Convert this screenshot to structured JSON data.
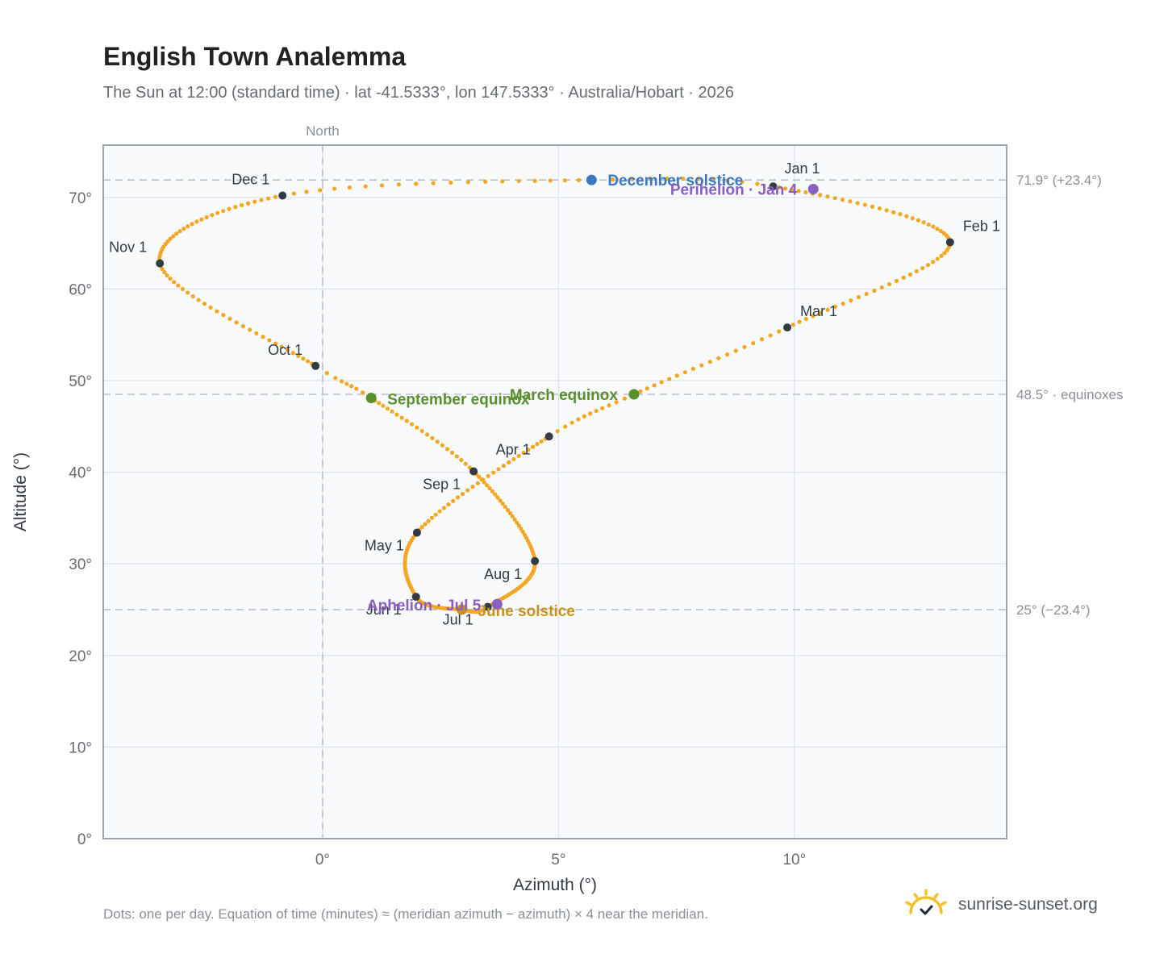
{
  "title": "English Town Analemma",
  "subtitle": "The Sun at 12:00 (standard time) · lat -41.5333°, lon 147.5333° · Australia/Hobart · 2026",
  "footnote": "Dots: one per day. Equation of time (minutes) ≈ (meridian azimuth − azimuth) × 4 near the meridian.",
  "brand": {
    "text": "sunrise-sunset.org",
    "icon": "sun-check-icon"
  },
  "colors": {
    "curve": "#f5a623",
    "month_marker": "#333a44",
    "december": "#3a78c0",
    "equinox": "#5a8f2e",
    "june": "#c8921a",
    "apsis": "#8a5fbf",
    "grid": "#e3e8ef",
    "plot_bg": "#f8fafc",
    "frame": "#9aa5b4",
    "reference": "#b8c0cc"
  },
  "chart_data": {
    "type": "scatter",
    "title": "English Town Analemma",
    "xlabel": "Azimuth (°)",
    "ylabel": "Altitude (°)",
    "xlim": [
      -4.65,
      14.5
    ],
    "ylim": [
      0,
      75.7
    ],
    "x_ticks": [
      {
        "value": 0,
        "label": "0°"
      },
      {
        "value": 5,
        "label": "5°"
      },
      {
        "value": 10,
        "label": "10°"
      }
    ],
    "y_ticks": [
      {
        "value": 0,
        "label": "0°"
      },
      {
        "value": 10,
        "label": "10°"
      },
      {
        "value": 20,
        "label": "20°"
      },
      {
        "value": 30,
        "label": "30°"
      },
      {
        "value": 40,
        "label": "40°"
      },
      {
        "value": 50,
        "label": "50°"
      },
      {
        "value": 60,
        "label": "60°"
      },
      {
        "value": 70,
        "label": "70°"
      }
    ],
    "grid": true,
    "meridian": {
      "azimuth": 0,
      "label": "North"
    },
    "reference_lines": [
      {
        "altitude": 71.9,
        "label": "71.9° (+23.4°)"
      },
      {
        "altitude": 48.5,
        "label": "48.5° · equinoxes"
      },
      {
        "altitude": 25.0,
        "label": "25° (−23.4°)"
      }
    ],
    "series": [
      {
        "type": "daily_dots",
        "points_per_year": 365,
        "anchors": [
          {
            "day": 1,
            "az": 9.55,
            "alt": 71.2
          },
          {
            "day": 32,
            "az": 13.3,
            "alt": 65.1
          },
          {
            "day": 60,
            "az": 9.85,
            "alt": 55.8
          },
          {
            "day": 79,
            "az": 6.6,
            "alt": 48.5
          },
          {
            "day": 91,
            "az": 4.8,
            "alt": 43.9
          },
          {
            "day": 121,
            "az": 2.0,
            "alt": 33.4
          },
          {
            "day": 152,
            "az": 1.98,
            "alt": 26.4
          },
          {
            "day": 172,
            "az": 2.95,
            "alt": 25.0
          },
          {
            "day": 182,
            "az": 3.5,
            "alt": 25.3
          },
          {
            "day": 213,
            "az": 4.5,
            "alt": 30.3
          },
          {
            "day": 244,
            "az": 3.2,
            "alt": 40.1
          },
          {
            "day": 266,
            "az": 1.03,
            "alt": 48.1
          },
          {
            "day": 274,
            "az": -0.15,
            "alt": 51.6
          },
          {
            "day": 305,
            "az": -3.45,
            "alt": 62.8
          },
          {
            "day": 335,
            "az": -0.85,
            "alt": 70.2
          },
          {
            "day": 355,
            "az": 5.7,
            "alt": 71.9
          },
          {
            "day": 366,
            "az": 9.55,
            "alt": 71.2
          }
        ]
      }
    ],
    "month_markers": [
      {
        "label": "Jan 1",
        "az": 9.55,
        "alt": 71.2,
        "dx": 14,
        "dy": -16,
        "anchor": "start"
      },
      {
        "label": "Feb 1",
        "az": 13.3,
        "alt": 65.1,
        "dx": 16,
        "dy": -14,
        "anchor": "start"
      },
      {
        "label": "Mar 1",
        "az": 9.85,
        "alt": 55.8,
        "dx": 16,
        "dy": -14,
        "anchor": "start"
      },
      {
        "label": "Apr 1",
        "az": 4.8,
        "alt": 43.9,
        "dx": -66,
        "dy": 22,
        "anchor": "start"
      },
      {
        "label": "May 1",
        "az": 2.0,
        "alt": 33.4,
        "dx": -16,
        "dy": 22,
        "anchor": "end"
      },
      {
        "label": "Jun 1",
        "az": 1.98,
        "alt": 26.4,
        "dx": -18,
        "dy": 22,
        "anchor": "end"
      },
      {
        "label": "Jul 1",
        "az": 3.5,
        "alt": 25.3,
        "dx": -18,
        "dy": 22,
        "anchor": "end"
      },
      {
        "label": "Aug 1",
        "az": 4.5,
        "alt": 30.3,
        "dx": -16,
        "dy": 22,
        "anchor": "end"
      },
      {
        "label": "Sep 1",
        "az": 3.2,
        "alt": 40.1,
        "dx": -16,
        "dy": 22,
        "anchor": "end"
      },
      {
        "label": "Oct 1",
        "az": -0.15,
        "alt": 51.6,
        "dx": -16,
        "dy": -14,
        "anchor": "end"
      },
      {
        "label": "Nov 1",
        "az": -3.45,
        "alt": 62.8,
        "dx": -16,
        "dy": -14,
        "anchor": "end"
      },
      {
        "label": "Dec 1",
        "az": -0.85,
        "alt": 70.2,
        "dx": -16,
        "dy": -14,
        "anchor": "end"
      }
    ],
    "events": [
      {
        "label": "December solstice",
        "az": 5.7,
        "alt": 71.9,
        "color": "#3a78c0",
        "dx": 20,
        "dy": 7,
        "anchor": "start"
      },
      {
        "label": "Perihelion · Jan 4",
        "az": 10.4,
        "alt": 70.9,
        "color": "#8a5fbf",
        "dx": -20,
        "dy": 7,
        "anchor": "end"
      },
      {
        "label": "March equinox",
        "az": 6.6,
        "alt": 48.5,
        "color": "#5a8f2e",
        "dx": -20,
        "dy": 7,
        "anchor": "end"
      },
      {
        "label": "September equinox",
        "az": 1.03,
        "alt": 48.1,
        "color": "#5a8f2e",
        "dx": 20,
        "dy": 8,
        "anchor": "start"
      },
      {
        "label": "June solstice",
        "az": 2.95,
        "alt": 25.0,
        "color": "#c8921a",
        "dx": 20,
        "dy": 8,
        "anchor": "start"
      },
      {
        "label": "Aphelion · Jul 5",
        "az": 3.7,
        "alt": 25.6,
        "color": "#8a5fbf",
        "dx": -20,
        "dy": 8,
        "anchor": "end"
      }
    ]
  }
}
